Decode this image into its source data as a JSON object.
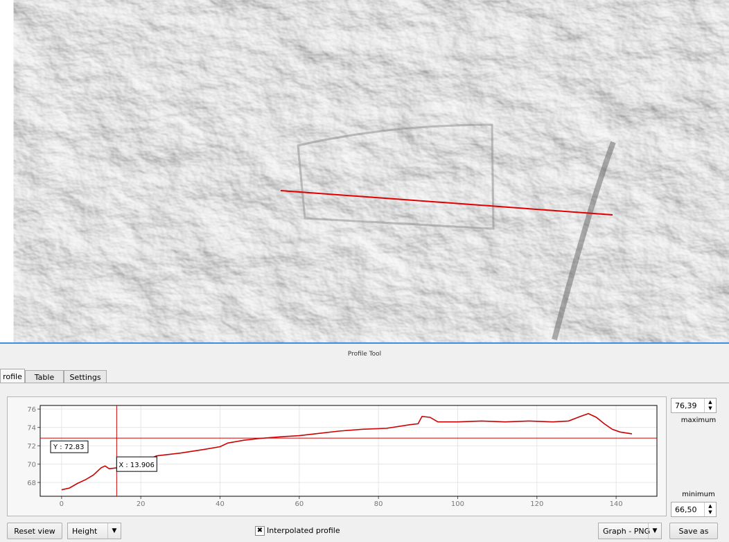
{
  "dock_title": "Profile Tool",
  "tabs": [
    "rofile",
    "Table",
    "Settings"
  ],
  "chart_data": {
    "type": "line",
    "x": [
      0,
      2,
      4,
      6,
      8,
      10,
      11,
      12,
      14,
      16,
      18,
      20,
      24,
      30,
      36,
      40,
      42,
      46,
      50,
      56,
      60,
      64,
      70,
      76,
      82,
      88,
      90,
      91,
      93,
      95,
      100,
      106,
      112,
      118,
      124,
      128,
      131,
      133,
      135,
      137,
      139,
      141,
      144
    ],
    "values": [
      67.2,
      67.4,
      67.9,
      68.3,
      68.8,
      69.6,
      69.8,
      69.5,
      69.6,
      69.8,
      70.0,
      70.2,
      70.9,
      71.2,
      71.6,
      71.9,
      72.3,
      72.6,
      72.8,
      73.0,
      73.1,
      73.3,
      73.6,
      73.8,
      73.9,
      74.3,
      74.4,
      75.2,
      75.1,
      74.6,
      74.6,
      74.7,
      74.6,
      74.7,
      74.6,
      74.7,
      75.2,
      75.5,
      75.1,
      74.4,
      73.8,
      73.5,
      73.3
    ],
    "color": "#cc0000",
    "xlim": [
      -5.4,
      150.3
    ],
    "ylim": [
      66.5,
      76.39
    ],
    "xticks": [
      0,
      20,
      40,
      60,
      80,
      100,
      120,
      140
    ],
    "yticks": [
      68,
      70,
      72,
      74,
      76
    ],
    "grid": true,
    "cursor": {
      "x": 13.906,
      "y": 72.83,
      "x_label": "X : 13.906",
      "y_label": "Y : 72.83"
    }
  },
  "range": {
    "max_text": "76,39",
    "max_label": "maximum",
    "min_label": "minimum",
    "min_text": "66,50"
  },
  "controls": {
    "reset": "Reset view",
    "mode": "Height",
    "interpolated": "Interpolated profile",
    "export": "Graph - PNG",
    "save": "Save as"
  }
}
